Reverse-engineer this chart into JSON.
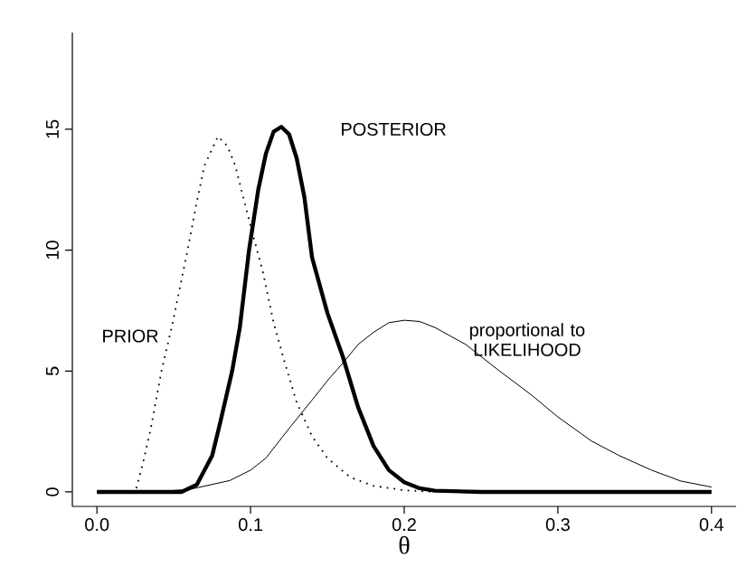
{
  "chart_data": {
    "type": "line",
    "xlabel": "θ",
    "xlim": [
      -0.016,
      0.416
    ],
    "ylim": [
      -0.6,
      19
    ],
    "xticks": [
      {
        "value": 0,
        "label": "0.0"
      },
      0.1,
      0.2,
      0.3,
      0.4
    ],
    "yticks": [
      0,
      5,
      10,
      15
    ],
    "marker": "none",
    "series": [
      {
        "name": "PRIOR",
        "color": "#000000",
        "line_style": "dotted",
        "x": [
          0,
          0.025,
          0.03,
          0.035,
          0.042,
          0.049,
          0.059,
          0.065,
          0.07,
          0.0787,
          0.085,
          0.09,
          0.1,
          0.108,
          0.115,
          0.122,
          0.13,
          0.14,
          0.15,
          0.165,
          0.18,
          0.2,
          0.22
        ],
        "values": [
          0,
          0,
          1.2,
          2.6,
          5,
          6.9,
          10,
          12,
          13.5,
          14.7,
          14.3,
          13.5,
          11,
          9.1,
          7,
          5.4,
          3.7,
          2.3,
          1.4,
          0.6,
          0.25,
          0.07,
          0
        ]
      },
      {
        "name": "POSTERIOR",
        "color": "#000000",
        "line_style": "solid",
        "x": [
          0,
          0.055,
          0.065,
          0.075,
          0.08,
          0.088,
          0.093,
          0.099,
          0.105,
          0.11,
          0.115,
          0.12,
          0.125,
          0.13,
          0.135,
          0.14,
          0.15,
          0.16,
          0.17,
          0.18,
          0.19,
          0.2,
          0.21,
          0.22,
          0.25,
          0.4
        ],
        "values": [
          0,
          0,
          0.3,
          1.5,
          2.8,
          5,
          6.8,
          10,
          12.5,
          14,
          14.9,
          15.1,
          14.8,
          13.8,
          12.2,
          9.7,
          7.4,
          5.6,
          3.5,
          1.9,
          0.9,
          0.4,
          0.15,
          0.05,
          0,
          0
        ]
      },
      {
        "name": "proportional to LIKELIHOOD",
        "color": "#000000",
        "line_style": "solid",
        "x": [
          0,
          0.04,
          0.06,
          0.0865,
          0.1,
          0.11,
          0.126,
          0.14,
          0.15,
          0.161,
          0.17,
          0.18,
          0.19,
          0.2,
          0.21,
          0.22,
          0.24,
          0.26,
          0.283,
          0.3,
          0.322,
          0.34,
          0.361,
          0.38,
          0.4
        ],
        "values": [
          0,
          0.02,
          0.1,
          0.47,
          0.9,
          1.4,
          2.7,
          3.8,
          4.6,
          5.4,
          6.1,
          6.6,
          7,
          7.1,
          7.05,
          6.8,
          6.1,
          5.1,
          4,
          3.1,
          2.1,
          1.5,
          0.9,
          0.45,
          0.2
        ]
      }
    ]
  }
}
